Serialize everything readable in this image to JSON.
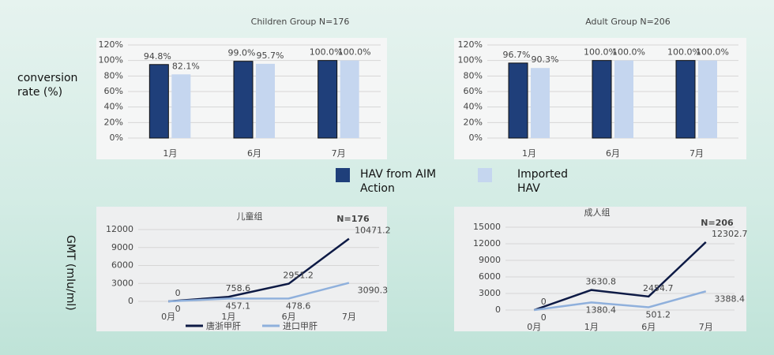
{
  "chart_data": [
    {
      "type": "bar",
      "title": "Children Group    N=176",
      "ylabel": "conversion rate (%)",
      "categories": [
        "1月",
        "6月",
        "7月"
      ],
      "series": [
        {
          "name": "HAV from AIM Action",
          "color": "#1f3f7a",
          "values": [
            94.8,
            99.0,
            100.0
          ],
          "value_labels": [
            "94.8%",
            "99.0%",
            "100.0%"
          ]
        },
        {
          "name": "Imported HAV",
          "color": "#c5d6ef",
          "values": [
            82.1,
            95.7,
            100.0
          ],
          "value_labels": [
            "82.1%",
            "95.7%",
            "100.0%"
          ]
        }
      ],
      "ylim": [
        0,
        120
      ],
      "yticks": [
        {
          "value": 0,
          "label": "0%"
        },
        {
          "value": 20,
          "label": "20%"
        },
        {
          "value": 40,
          "label": "40%"
        },
        {
          "value": 60,
          "label": "60%"
        },
        {
          "value": 80,
          "label": "80%"
        },
        {
          "value": 100,
          "label": "100%"
        },
        {
          "value": 120,
          "label": "120%"
        }
      ]
    },
    {
      "type": "bar",
      "title": "Adult Group    N=206",
      "categories": [
        "1月",
        "6月",
        "7月"
      ],
      "series": [
        {
          "color": "#1f3f7a",
          "values": [
            96.7,
            100.0,
            100.0
          ],
          "value_labels": [
            "96.7%",
            "100.0%",
            "100.0%"
          ]
        },
        {
          "color": "#c5d6ef",
          "values": [
            90.3,
            100.0,
            100.0
          ],
          "value_labels": [
            "90.3%",
            "100.0%",
            "100.0%"
          ]
        }
      ],
      "ylim": [
        0,
        120
      ],
      "yticks": [
        {
          "value": 0,
          "label": "0%"
        },
        {
          "value": 20,
          "label": "20%"
        },
        {
          "value": 40,
          "label": "40%"
        },
        {
          "value": 60,
          "label": "60%"
        },
        {
          "value": 80,
          "label": "80%"
        },
        {
          "value": 100,
          "label": "100%"
        },
        {
          "value": 120,
          "label": "120%"
        }
      ]
    },
    {
      "type": "line",
      "title": "儿童组",
      "annotation": "N=176",
      "ylabel": "GMT (mIu/ml)",
      "categories": [
        "0月",
        "1月",
        "6月",
        "7月"
      ],
      "series": [
        {
          "name": "唐浙甲肝",
          "color": "#0d1a45",
          "values": [
            0,
            758.6,
            2951.2,
            10471.2
          ]
        },
        {
          "name": "进口甲肝",
          "color": "#8fb0dc",
          "values": [
            0,
            457.1,
            478.6,
            3090.3
          ]
        }
      ],
      "ylim": [
        0,
        12000
      ],
      "yticks": [
        0,
        3000,
        6000,
        9000,
        12000
      ]
    },
    {
      "type": "line",
      "title": "成人组",
      "annotation": "N=206",
      "categories": [
        "0月",
        "1月",
        "6月",
        "7月"
      ],
      "series": [
        {
          "color": "#0d1a45",
          "values": [
            0,
            3630.8,
            2454.7,
            12302.7
          ]
        },
        {
          "color": "#8fb0dc",
          "values": [
            0,
            1380.4,
            501.2,
            3388.4
          ]
        }
      ],
      "ylim": [
        0,
        15000
      ],
      "yticks": [
        0,
        3000,
        6000,
        9000,
        12000,
        15000
      ]
    }
  ]
}
